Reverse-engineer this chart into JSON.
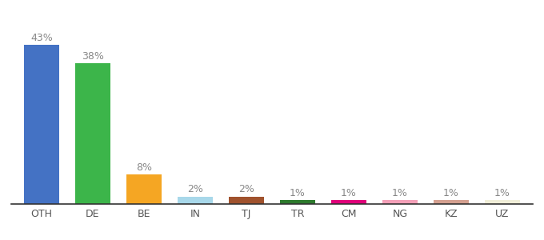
{
  "categories": [
    "OTH",
    "DE",
    "BE",
    "IN",
    "TJ",
    "TR",
    "CM",
    "NG",
    "KZ",
    "UZ"
  ],
  "values": [
    43,
    38,
    8,
    2,
    2,
    1,
    1,
    1,
    1,
    1
  ],
  "labels": [
    "43%",
    "38%",
    "8%",
    "2%",
    "2%",
    "1%",
    "1%",
    "1%",
    "1%",
    "1%"
  ],
  "colors": [
    "#4472c4",
    "#3cb54a",
    "#f5a623",
    "#a8d8ea",
    "#a0522d",
    "#2d7a2d",
    "#e0007a",
    "#f4a0b8",
    "#d4a090",
    "#f0eed8"
  ],
  "ylim": [
    0,
    50
  ],
  "label_color": "#888888",
  "label_fontsize": 9,
  "xtick_fontsize": 9,
  "xtick_color": "#555555",
  "bar_width": 0.7,
  "background_color": "#ffffff"
}
